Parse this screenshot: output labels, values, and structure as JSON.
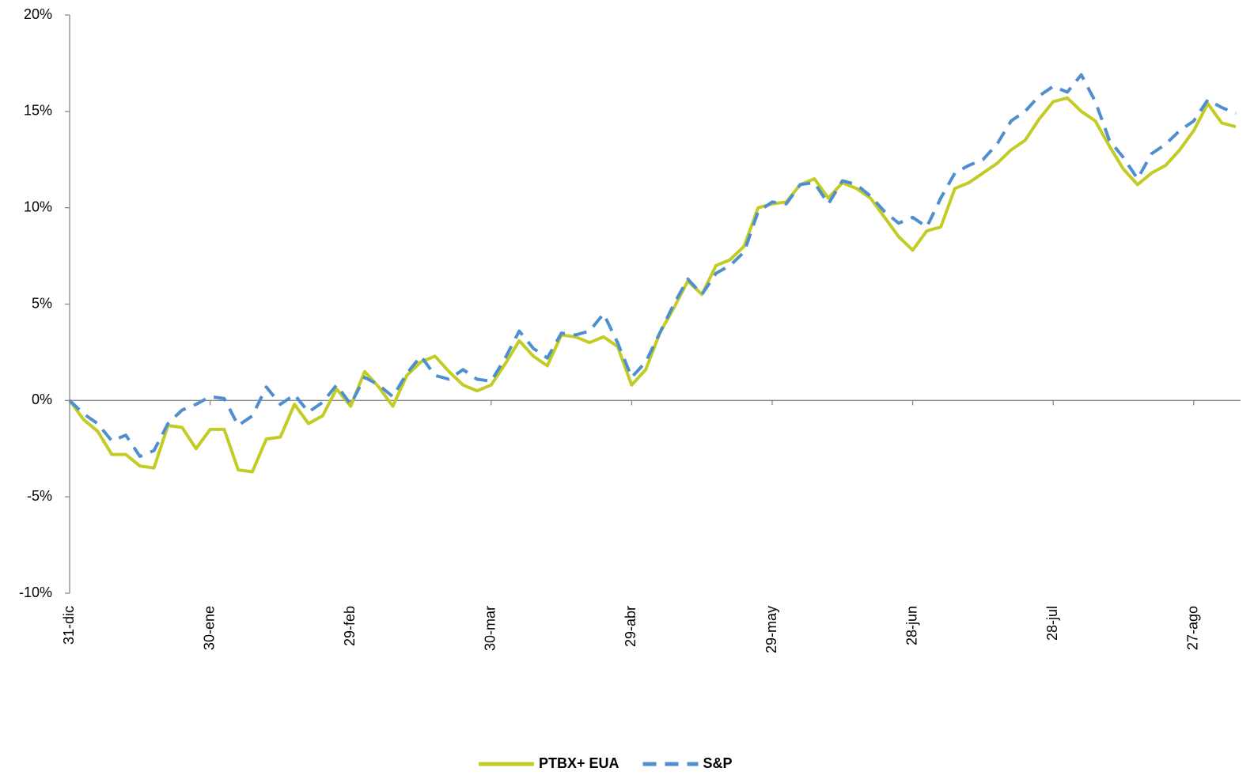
{
  "chart_data": {
    "type": "line",
    "categories": [
      "31-dic",
      null,
      null,
      null,
      null,
      null,
      null,
      null,
      null,
      null,
      "30-ene",
      null,
      null,
      null,
      null,
      null,
      null,
      null,
      null,
      null,
      "29-feb",
      null,
      null,
      null,
      null,
      null,
      null,
      null,
      null,
      null,
      "30-mar",
      null,
      null,
      null,
      null,
      null,
      null,
      null,
      null,
      null,
      "29-abr",
      null,
      null,
      null,
      null,
      null,
      null,
      null,
      null,
      null,
      "29-may",
      null,
      null,
      null,
      null,
      null,
      null,
      null,
      null,
      null,
      "28-jun",
      null,
      null,
      null,
      null,
      null,
      null,
      null,
      null,
      null,
      "28-jul",
      null,
      null,
      null,
      null,
      null,
      null,
      null,
      null,
      null,
      "27-ago",
      null,
      null,
      null
    ],
    "series": [
      {
        "name": "PTBX+ EUA",
        "color": "#c3cc24",
        "dash": false,
        "values": [
          0,
          -1.0,
          -1.6,
          -2.8,
          -2.8,
          -3.4,
          -3.5,
          -1.3,
          -1.4,
          -2.5,
          -1.5,
          -1.5,
          -3.6,
          -3.7,
          -2.0,
          -1.9,
          -0.2,
          -1.2,
          -0.8,
          0.6,
          -0.3,
          1.5,
          0.7,
          -0.3,
          1.3,
          2.0,
          2.3,
          1.5,
          0.8,
          0.5,
          0.8,
          1.9,
          3.1,
          2.3,
          1.8,
          3.4,
          3.3,
          3.0,
          3.3,
          2.8,
          0.8,
          1.6,
          3.5,
          4.8,
          6.2,
          5.5,
          7.0,
          7.3,
          8.0,
          10.0,
          10.2,
          10.3,
          11.2,
          11.5,
          10.5,
          11.3,
          11.0,
          10.5,
          9.5,
          8.5,
          7.8,
          8.8,
          9.0,
          11.0,
          11.3,
          11.8,
          12.3,
          13.0,
          13.5,
          14.6,
          15.5,
          15.7,
          15.0,
          14.5,
          13.2,
          12.0,
          11.2,
          11.8,
          12.2,
          13.0,
          14.0,
          15.4,
          14.4,
          14.2
        ]
      },
      {
        "name": "S&P",
        "color": "#4f8fd0",
        "dash": true,
        "values": [
          0,
          -0.7,
          -1.2,
          -2.1,
          -1.8,
          -2.9,
          -2.6,
          -1.2,
          -0.5,
          -0.2,
          0.2,
          0.1,
          -1.3,
          -0.8,
          0.7,
          -0.2,
          0.3,
          -0.6,
          -0.1,
          0.8,
          -0.2,
          1.2,
          0.8,
          0.2,
          1.4,
          2.3,
          1.3,
          1.1,
          1.6,
          1.1,
          1.0,
          2.2,
          3.6,
          2.7,
          2.2,
          3.5,
          3.4,
          3.6,
          4.5,
          3.0,
          1.2,
          2.0,
          3.5,
          5.0,
          6.3,
          5.5,
          6.6,
          7.0,
          7.7,
          9.8,
          10.3,
          10.2,
          11.2,
          11.3,
          10.2,
          11.4,
          11.2,
          10.6,
          9.8,
          9.2,
          9.5,
          9.0,
          10.5,
          11.8,
          12.2,
          12.5,
          13.3,
          14.5,
          15.0,
          15.8,
          16.3,
          16.0,
          16.9,
          15.5,
          13.5,
          12.6,
          11.5,
          12.8,
          13.3,
          14.0,
          14.5,
          15.6,
          15.2,
          14.9
        ]
      }
    ],
    "ylim": [
      -10,
      20
    ],
    "yticks": [
      {
        "value": -10,
        "label": "-10%"
      },
      {
        "value": -5,
        "label": "-5%"
      },
      {
        "value": 0,
        "label": "0%"
      },
      {
        "value": 5,
        "label": "5%"
      },
      {
        "value": 10,
        "label": "10%"
      },
      {
        "value": 15,
        "label": "15%"
      },
      {
        "value": 20,
        "label": "20%"
      }
    ],
    "legend": "bottom"
  }
}
